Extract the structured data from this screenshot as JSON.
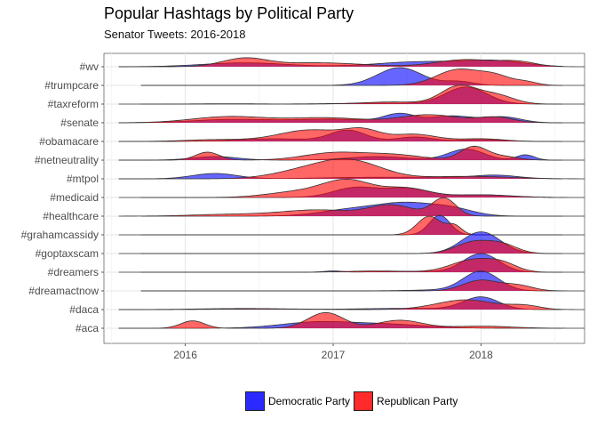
{
  "chart_data": {
    "type": "ridgeline",
    "title": "Popular Hashtags by Political Party",
    "subtitle": "Senator Tweets: 2016-2018",
    "xlabel": "",
    "ylabel": "",
    "xlim": [
      2015.45,
      2018.7
    ],
    "x_ticks": [
      2016,
      2017,
      2018
    ],
    "x_tick_labels": [
      "2016",
      "2017",
      "2018"
    ],
    "grid": true,
    "legend_position": "bottom",
    "categories": [
      "#wv",
      "#trumpcare",
      "#taxreform",
      "#senate",
      "#obamacare",
      "#netneutrality",
      "#mtpol",
      "#medicaid",
      "#healthcare",
      "#grahamcassidy",
      "#goptaxscam",
      "#dreamers",
      "#dreamactnow",
      "#daca",
      "#aca"
    ],
    "series": [
      {
        "name": "Democratic Party",
        "color": "#0000ff",
        "ranges": {
          "#wv": [
            2015.55,
            2018.55
          ],
          "#trumpcare": [
            2015.7,
            2018.55
          ],
          "#taxreform": [
            2015.7,
            2018.55
          ],
          "#senate": [
            2015.55,
            2018.55
          ],
          "#obamacare": [
            2015.55,
            2018.55
          ],
          "#netneutrality": [
            2015.55,
            2018.55
          ],
          "#mtpol": [
            2015.55,
            2018.55
          ],
          "#medicaid": [
            2015.7,
            2018.55
          ],
          "#healthcare": [
            2015.7,
            2018.55
          ],
          "#grahamcassidy": [
            2015.7,
            2018.55
          ],
          "#goptaxscam": [
            2015.7,
            2018.55
          ],
          "#dreamers": [
            2015.7,
            2018.55
          ],
          "#dreamactnow": [
            2015.7,
            2018.55
          ],
          "#daca": [
            2015.55,
            2018.55
          ],
          "#aca": [
            2015.55,
            2018.55
          ]
        },
        "peaks": {
          "#wv": [
            [
              2016.4,
              0.22,
              0.28
            ],
            [
              2017.6,
              0.28,
              0.3
            ],
            [
              2018.1,
              0.3,
              0.2
            ]
          ],
          "#trumpcare": [
            [
              2017.45,
              1.0,
              0.15
            ],
            [
              2017.85,
              0.22,
              0.1
            ]
          ],
          "#taxreform": [
            [
              2017.9,
              0.95,
              0.14
            ],
            [
              2017.3,
              0.05,
              0.3
            ]
          ],
          "#senate": [
            [
              2016.3,
              0.18,
              0.25
            ],
            [
              2017.0,
              0.2,
              0.3
            ],
            [
              2017.45,
              0.45,
              0.1
            ],
            [
              2017.8,
              0.38,
              0.15
            ],
            [
              2018.15,
              0.32,
              0.12
            ]
          ],
          "#obamacare": [
            [
              2017.1,
              0.62,
              0.12
            ],
            [
              2016.6,
              0.15,
              0.25
            ],
            [
              2017.55,
              0.25,
              0.12
            ],
            [
              2018.0,
              0.1,
              0.15
            ]
          ],
          "#netneutrality": [
            [
              2017.9,
              0.62,
              0.12
            ],
            [
              2018.3,
              0.3,
              0.06
            ],
            [
              2017.3,
              0.2,
              0.2
            ],
            [
              2016.2,
              0.2,
              0.15
            ]
          ],
          "#mtpol": [
            [
              2016.2,
              0.3,
              0.15
            ],
            [
              2017.2,
              0.08,
              0.3
            ],
            [
              2018.1,
              0.2,
              0.15
            ],
            [
              2017.7,
              0.07,
              0.2
            ]
          ],
          "#medicaid": [
            [
              2017.15,
              0.55,
              0.15
            ],
            [
              2017.5,
              0.5,
              0.15
            ],
            [
              2018.0,
              0.15,
              0.2
            ]
          ],
          "#healthcare": [
            [
              2017.5,
              0.62,
              0.18
            ],
            [
              2017.15,
              0.4,
              0.22
            ],
            [
              2017.8,
              0.4,
              0.15
            ]
          ],
          "#grahamcassidy": [
            [
              2017.72,
              1.1,
              0.07
            ]
          ],
          "#goptaxscam": [
            [
              2018.0,
              1.22,
              0.13
            ]
          ],
          "#dreamers": [
            [
              2018.0,
              1.05,
              0.12
            ],
            [
              2017.0,
              0.07,
              0.06
            ],
            [
              2017.5,
              0.05,
              0.2
            ]
          ],
          "#dreamactnow": [
            [
              2018.0,
              1.1,
              0.12
            ],
            [
              2017.7,
              0.05,
              0.2
            ]
          ],
          "#daca": [
            [
              2018.0,
              0.7,
              0.12
            ],
            [
              2016.4,
              0.06,
              0.3
            ],
            [
              2017.5,
              0.07,
              0.3
            ]
          ],
          "#aca": [
            [
              2016.9,
              0.35,
              0.25
            ],
            [
              2017.4,
              0.2,
              0.25
            ]
          ]
        }
      },
      {
        "name": "Republican Party",
        "color": "#ff0000",
        "ranges": {
          "#wv": [
            2015.55,
            2018.7
          ],
          "#trumpcare": [
            2015.7,
            2018.7
          ],
          "#taxreform": [
            2015.55,
            2018.7
          ],
          "#senate": [
            2015.55,
            2018.7
          ],
          "#obamacare": [
            2015.55,
            2018.7
          ],
          "#netneutrality": [
            2015.55,
            2018.7
          ],
          "#mtpol": [
            2015.55,
            2018.7
          ],
          "#medicaid": [
            2015.55,
            2018.7
          ],
          "#healthcare": [
            2015.55,
            2018.7
          ],
          "#grahamcassidy": [
            2015.55,
            2018.7
          ],
          "#goptaxscam": [
            2015.55,
            2018.7
          ],
          "#dreamers": [
            2015.55,
            2018.7
          ],
          "#dreamactnow": [
            2015.7,
            2018.7
          ],
          "#daca": [
            2015.55,
            2018.7
          ],
          "#aca": [
            2015.55,
            2018.7
          ]
        },
        "peaks": {
          "#wv": [
            [
              2016.4,
              0.45,
              0.15
            ],
            [
              2016.9,
              0.22,
              0.3
            ],
            [
              2017.9,
              0.4,
              0.2
            ],
            [
              2018.25,
              0.25,
              0.12
            ]
          ],
          "#trumpcare": [
            [
              2017.85,
              0.9,
              0.15
            ],
            [
              2018.1,
              0.45,
              0.1
            ],
            [
              2018.3,
              0.2,
              0.08
            ]
          ],
          "#taxreform": [
            [
              2017.85,
              1.0,
              0.12
            ],
            [
              2018.1,
              0.5,
              0.12
            ],
            [
              2017.4,
              0.12,
              0.2
            ],
            [
              2016.3,
              0.02,
              0.2
            ]
          ],
          "#senate": [
            [
              2016.3,
              0.35,
              0.25
            ],
            [
              2016.95,
              0.28,
              0.25
            ],
            [
              2017.65,
              0.45,
              0.2
            ],
            [
              2018.1,
              0.3,
              0.12
            ]
          ],
          "#obamacare": [
            [
              2016.85,
              0.65,
              0.22
            ],
            [
              2017.2,
              0.55,
              0.12
            ],
            [
              2017.55,
              0.4,
              0.15
            ],
            [
              2016.2,
              0.1,
              0.2
            ],
            [
              2018.0,
              0.15,
              0.15
            ]
          ],
          "#netneutrality": [
            [
              2017.95,
              0.75,
              0.09
            ],
            [
              2016.15,
              0.45,
              0.08
            ],
            [
              2017.0,
              0.4,
              0.2
            ],
            [
              2017.4,
              0.3,
              0.2
            ],
            [
              2018.15,
              0.2,
              0.1
            ]
          ],
          "#mtpol": [
            [
              2017.1,
              1.05,
              0.22
            ],
            [
              2016.75,
              0.3,
              0.2
            ],
            [
              2017.8,
              0.1,
              0.2
            ],
            [
              2018.1,
              0.08,
              0.2
            ]
          ],
          "#medicaid": [
            [
              2017.1,
              0.95,
              0.17
            ],
            [
              2016.75,
              0.3,
              0.2
            ],
            [
              2017.5,
              0.5,
              0.15
            ],
            [
              2018.0,
              0.15,
              0.2
            ]
          ],
          "#healthcare": [
            [
              2017.75,
              1.0,
              0.08
            ],
            [
              2017.4,
              0.6,
              0.15
            ],
            [
              2016.9,
              0.35,
              0.25
            ],
            [
              2016.3,
              0.1,
              0.25
            ]
          ],
          "#grahamcassidy": [
            [
              2017.65,
              1.05,
              0.08
            ],
            [
              2017.82,
              0.5,
              0.05
            ]
          ],
          "#goptaxscam": [
            [
              2017.95,
              0.65,
              0.12
            ],
            [
              2018.15,
              0.45,
              0.1
            ]
          ],
          "#dreamers": [
            [
              2017.95,
              0.7,
              0.15
            ],
            [
              2018.15,
              0.35,
              0.1
            ],
            [
              2017.3,
              0.07,
              0.2
            ]
          ],
          "#dreamactnow": [
            [
              2018.0,
              0.6,
              0.12
            ],
            [
              2018.25,
              0.3,
              0.1
            ]
          ],
          "#daca": [
            [
              2017.9,
              0.55,
              0.2
            ],
            [
              2018.3,
              0.2,
              0.1
            ],
            [
              2016.5,
              0.03,
              0.3
            ]
          ],
          "#aca": [
            [
              2016.05,
              0.42,
              0.08
            ],
            [
              2016.95,
              0.88,
              0.12
            ],
            [
              2017.45,
              0.45,
              0.15
            ],
            [
              2018.0,
              0.12,
              0.2
            ]
          ]
        }
      }
    ]
  },
  "legend": {
    "items": [
      {
        "label": "Democratic Party",
        "color": "#0000ff"
      },
      {
        "label": "Republican Party",
        "color": "#ff0000"
      }
    ]
  }
}
